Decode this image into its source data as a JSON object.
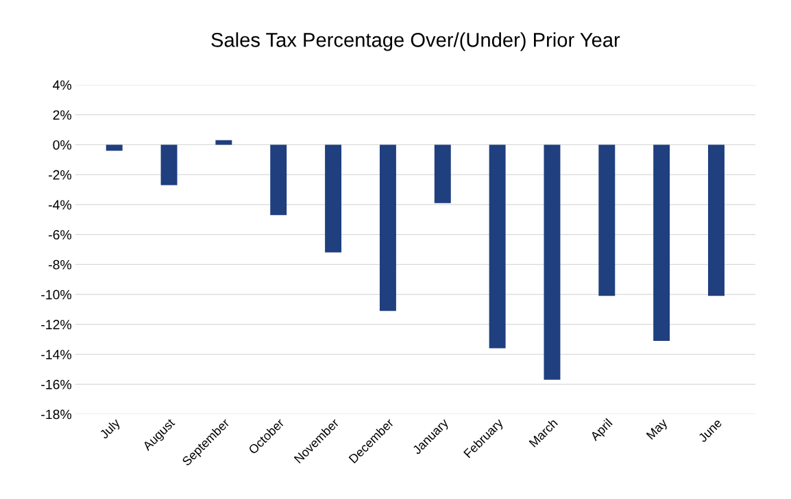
{
  "chart_data": {
    "type": "bar",
    "title": "Sales Tax Percentage Over/(Under) Prior Year",
    "categories": [
      "July",
      "August",
      "September",
      "October",
      "November",
      "December",
      "January",
      "February",
      "March",
      "April",
      "May",
      "June"
    ],
    "series": [
      {
        "color": "#1f3f7f",
        "values": [
          -0.4,
          -2.7,
          0.3,
          -4.7,
          -7.2,
          -11.1,
          -3.9,
          -13.6,
          -15.7,
          -10.1,
          -13.1,
          -10.1
        ]
      }
    ],
    "ylim": [
      -18,
      4
    ],
    "yticks": [
      {
        "value": -18,
        "label": "-18%"
      },
      {
        "value": -16,
        "label": "-16%"
      },
      {
        "value": -14,
        "label": "-14%"
      },
      {
        "value": -12,
        "label": "-12%"
      },
      {
        "value": -10,
        "label": "-10%"
      },
      {
        "value": -8,
        "label": "-8%"
      },
      {
        "value": -6,
        "label": "-6%"
      },
      {
        "value": -4,
        "label": "-4%"
      },
      {
        "value": -2,
        "label": "-2%"
      },
      {
        "value": 0,
        "label": "0%"
      },
      {
        "value": 2,
        "label": "2%"
      },
      {
        "value": 4,
        "label": "4%"
      }
    ],
    "grid": "y"
  }
}
